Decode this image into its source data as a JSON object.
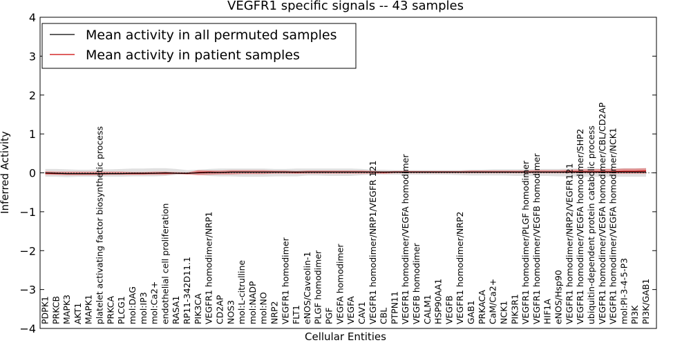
{
  "chart_data": {
    "type": "line",
    "title": "VEGFR1 specific signals -- 43 samples",
    "xlabel": "Cellular Entities",
    "ylabel": "Inferred Activity",
    "ylim": [
      -4,
      4
    ],
    "yticks": [
      "4",
      "3",
      "2",
      "1",
      "0",
      "−1",
      "−2",
      "−3",
      "−4"
    ],
    "legend": {
      "placement": "top-left"
    },
    "categories": [
      "PDPK1",
      "PRKCB",
      "MAPK3",
      "AKT1",
      "MAPK1",
      "platelet activating factor biosynthetic process",
      "PRKCA",
      "PLCG1",
      "mol:DAG",
      "mol:IP3",
      "mol:Ca2+",
      "endothelial cell proliferation",
      "RASA1",
      "RP11-342D11.1",
      "PIK3CA",
      "VEGFR1 homodimer/NRP1",
      "CD2AP",
      "NOS3",
      "mol:L-citrulline",
      "mol:NADP",
      "mol:NO",
      "NRP2",
      "VEGFR1 homodimer",
      "FLT1",
      "eNOS/Caveolin-1",
      "PLGF homodimer",
      "PGF",
      "VEGFA homodimer",
      "VEGFA",
      "CAV1",
      "VEGFR1 homodimer/NRP1/VEGFR 121",
      "CBL",
      "PTPN11",
      "VEGFR1 homodimer/VEGFA homodimer",
      "VEGFB homodimer",
      "CALM1",
      "HSP90AA1",
      "VEGFB",
      "VEGFR1 homodimer/NRP2",
      "GAB1",
      "PRKACA",
      "CaM/Ca2+",
      "NCK1",
      "PIK3R1",
      "VEGFR1 homodimer/PLGF homodimer",
      "VEGFR1 homodimer/VEGFB homodimer",
      "HIF1A",
      "eNOS/Hsp90",
      "VEGFR1 homodimer/NRP2/VEGFR121",
      "VEGFR1 homodimer/VEGFA homodimer/SHP2",
      "ubiquitin-dependent protein catabolic process",
      "VEGFR1 homodimer/VEGFA homodimer/CBL/CD2AP",
      "VEGFR1 homodimer/VEGFA homodimer/NCK1",
      "mol:PI-3-4-5-P3",
      "PI3K",
      "PI3K/GAB1"
    ],
    "series": [
      {
        "name": "Mean activity in all permuted samples",
        "color": "#000000",
        "values": [
          0.0,
          -0.01,
          -0.02,
          -0.02,
          -0.02,
          -0.02,
          -0.02,
          -0.02,
          -0.01,
          -0.01,
          -0.01,
          0.0,
          -0.01,
          -0.01,
          0.0,
          0.01,
          0.01,
          0.02,
          0.02,
          0.02,
          0.02,
          0.02,
          0.02,
          0.02,
          0.02,
          0.02,
          0.02,
          0.02,
          0.02,
          0.02,
          0.02,
          0.02,
          0.02,
          0.02,
          0.02,
          0.02,
          0.02,
          0.02,
          0.02,
          0.02,
          0.02,
          0.02,
          0.02,
          0.02,
          0.02,
          0.02,
          0.02,
          0.02,
          0.02,
          0.02,
          0.02,
          0.02,
          0.02,
          0.02,
          0.02,
          0.02
        ],
        "band_low": [
          -0.1,
          -0.1,
          -0.11,
          -0.1,
          -0.1,
          -0.1,
          -0.1,
          -0.1,
          -0.09,
          -0.09,
          -0.09,
          -0.08,
          -0.05,
          -0.03,
          -0.05,
          -0.08,
          -0.09,
          -0.09,
          -0.1,
          -0.1,
          -0.1,
          -0.09,
          -0.09,
          -0.09,
          -0.07,
          -0.07,
          -0.08,
          -0.08,
          -0.08,
          -0.06,
          -0.04,
          -0.05,
          -0.05,
          -0.05,
          -0.05,
          -0.05,
          -0.05,
          -0.05,
          -0.06,
          -0.07,
          -0.07,
          -0.07,
          -0.07,
          -0.08,
          -0.08,
          -0.08,
          -0.08,
          -0.09,
          -0.09,
          -0.1,
          -0.1,
          -0.1,
          -0.1,
          -0.1,
          -0.1,
          -0.1
        ],
        "band_high": [
          0.1,
          0.1,
          0.09,
          0.08,
          0.08,
          0.09,
          0.09,
          0.1,
          0.11,
          0.11,
          0.12,
          0.12,
          0.1,
          0.07,
          0.08,
          0.1,
          0.11,
          0.11,
          0.11,
          0.11,
          0.11,
          0.1,
          0.1,
          0.11,
          0.11,
          0.11,
          0.11,
          0.11,
          0.11,
          0.1,
          0.08,
          0.08,
          0.07,
          0.07,
          0.07,
          0.07,
          0.07,
          0.07,
          0.07,
          0.08,
          0.08,
          0.09,
          0.09,
          0.09,
          0.09,
          0.1,
          0.1,
          0.1,
          0.11,
          0.11,
          0.11,
          0.11,
          0.11,
          0.12,
          0.12,
          0.12
        ]
      },
      {
        "name": "Mean activity in patient samples",
        "color": "#cc0000",
        "values": [
          -0.01,
          -0.02,
          -0.02,
          -0.02,
          -0.02,
          -0.02,
          -0.02,
          -0.02,
          -0.02,
          -0.02,
          -0.01,
          -0.01,
          -0.01,
          -0.02,
          0.01,
          0.02,
          0.01,
          0.02,
          0.02,
          0.02,
          0.02,
          0.02,
          0.02,
          0.01,
          0.02,
          0.02,
          0.02,
          0.02,
          0.02,
          0.02,
          0.02,
          0.01,
          0.02,
          0.02,
          0.02,
          0.02,
          0.02,
          0.02,
          0.02,
          0.02,
          0.02,
          0.02,
          0.02,
          0.02,
          0.02,
          0.02,
          0.02,
          0.02,
          0.03,
          0.03,
          0.03,
          0.03,
          0.03,
          0.04,
          0.04,
          0.05
        ],
        "band_low": [
          -0.05,
          -0.05,
          -0.06,
          -0.06,
          -0.06,
          -0.06,
          -0.05,
          -0.05,
          -0.05,
          -0.05,
          -0.05,
          -0.05,
          -0.03,
          -0.04,
          -0.06,
          -0.05,
          -0.04,
          -0.04,
          -0.03,
          -0.03,
          -0.03,
          -0.02,
          -0.02,
          -0.02,
          -0.02,
          -0.02,
          -0.02,
          -0.02,
          -0.02,
          -0.02,
          -0.02,
          -0.02,
          -0.01,
          -0.01,
          -0.01,
          -0.01,
          -0.01,
          -0.01,
          -0.01,
          -0.01,
          -0.01,
          -0.01,
          -0.01,
          -0.01,
          -0.01,
          -0.01,
          -0.01,
          -0.01,
          -0.01,
          -0.01,
          -0.01,
          -0.01,
          -0.02,
          -0.02,
          -0.02,
          -0.02
        ],
        "band_high": [
          0.04,
          0.03,
          0.03,
          0.03,
          0.03,
          0.03,
          0.03,
          0.03,
          0.02,
          0.02,
          0.03,
          0.03,
          0.02,
          0.01,
          0.07,
          0.06,
          0.06,
          0.07,
          0.07,
          0.07,
          0.07,
          0.06,
          0.06,
          0.05,
          0.06,
          0.06,
          0.06,
          0.06,
          0.06,
          0.06,
          0.05,
          0.04,
          0.05,
          0.05,
          0.05,
          0.05,
          0.05,
          0.05,
          0.05,
          0.06,
          0.06,
          0.06,
          0.06,
          0.06,
          0.06,
          0.07,
          0.07,
          0.07,
          0.08,
          0.09,
          0.09,
          0.1,
          0.1,
          0.11,
          0.11,
          0.12
        ]
      }
    ],
    "grid": false
  }
}
